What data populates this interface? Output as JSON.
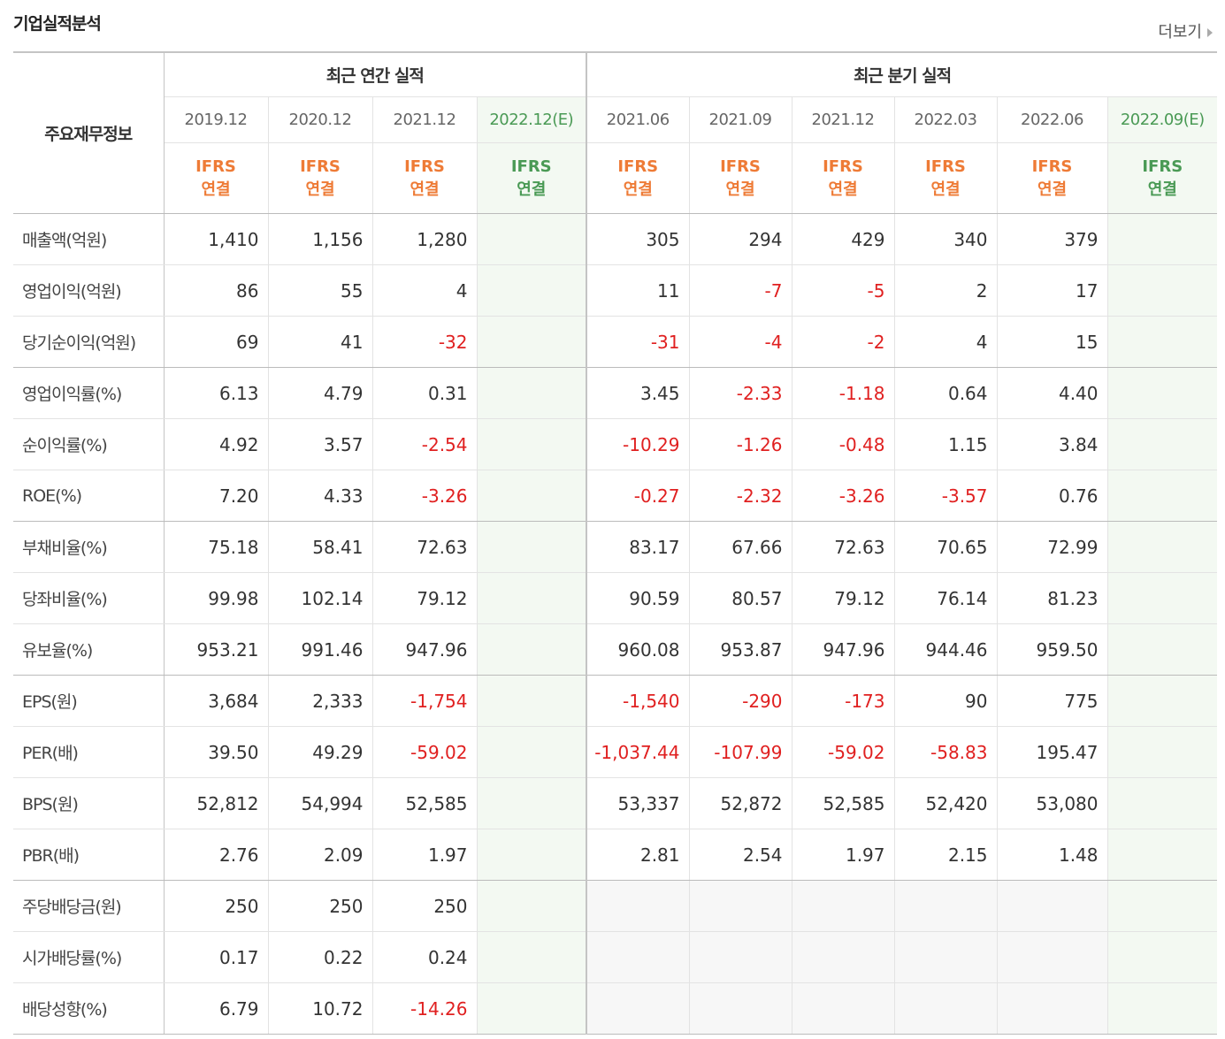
{
  "title": "기업실적분석",
  "more_link": "더보기",
  "table": {
    "row_header": "주요재무정보",
    "groups": [
      {
        "label": "최근 연간 실적",
        "periods": [
          {
            "date": "2019.12",
            "standard": "IFRS",
            "consolidation": "연결"
          },
          {
            "date": "2020.12",
            "standard": "IFRS",
            "consolidation": "연결"
          },
          {
            "date": "2021.12",
            "standard": "IFRS",
            "consolidation": "연결"
          },
          {
            "date": "2022.12",
            "mark": "(E)",
            "standard": "IFRS",
            "consolidation": "연결"
          }
        ]
      },
      {
        "label": "최근 분기 실적",
        "periods": [
          {
            "date": "2021.06",
            "standard": "IFRS",
            "consolidation": "연결"
          },
          {
            "date": "2021.09",
            "standard": "IFRS",
            "consolidation": "연결"
          },
          {
            "date": "2021.12",
            "standard": "IFRS",
            "consolidation": "연결"
          },
          {
            "date": "2022.03",
            "standard": "IFRS",
            "consolidation": "연결"
          },
          {
            "date": "2022.06",
            "standard": "IFRS",
            "consolidation": "연결"
          },
          {
            "date": "2022.09",
            "mark": "(E)",
            "standard": "IFRS",
            "consolidation": "연결"
          }
        ]
      }
    ],
    "row_groups": [
      {
        "rows": [
          {
            "label": "매출액(억원)",
            "values": [
              "1,410",
              "1,156",
              "1,280",
              null,
              "305",
              "294",
              "429",
              "340",
              "379",
              null
            ]
          },
          {
            "label": "영업이익(억원)",
            "values": [
              "86",
              "55",
              "4",
              null,
              "11",
              "-7",
              "-5",
              "2",
              "17",
              null
            ]
          },
          {
            "label": "당기순이익(억원)",
            "values": [
              "69",
              "41",
              "-32",
              null,
              "-31",
              "-4",
              "-2",
              "4",
              "15",
              null
            ]
          }
        ]
      },
      {
        "rows": [
          {
            "label": "영업이익률(%)",
            "values": [
              "6.13",
              "4.79",
              "0.31",
              null,
              "3.45",
              "-2.33",
              "-1.18",
              "0.64",
              "4.40",
              null
            ]
          },
          {
            "label": "순이익률(%)",
            "values": [
              "4.92",
              "3.57",
              "-2.54",
              null,
              "-10.29",
              "-1.26",
              "-0.48",
              "1.15",
              "3.84",
              null
            ]
          },
          {
            "label": "ROE(%)",
            "values": [
              "7.20",
              "4.33",
              "-3.26",
              null,
              "-0.27",
              "-2.32",
              "-3.26",
              "-3.57",
              "0.76",
              null
            ]
          }
        ]
      },
      {
        "rows": [
          {
            "label": "부채비율(%)",
            "values": [
              "75.18",
              "58.41",
              "72.63",
              null,
              "83.17",
              "67.66",
              "72.63",
              "70.65",
              "72.99",
              null
            ]
          },
          {
            "label": "당좌비율(%)",
            "values": [
              "99.98",
              "102.14",
              "79.12",
              null,
              "90.59",
              "80.57",
              "79.12",
              "76.14",
              "81.23",
              null
            ]
          },
          {
            "label": "유보율(%)",
            "values": [
              "953.21",
              "991.46",
              "947.96",
              null,
              "960.08",
              "953.87",
              "947.96",
              "944.46",
              "959.50",
              null
            ]
          }
        ]
      },
      {
        "rows": [
          {
            "label": "EPS(원)",
            "values": [
              "3,684",
              "2,333",
              "-1,754",
              null,
              "-1,540",
              "-290",
              "-173",
              "90",
              "775",
              null
            ]
          },
          {
            "label": "PER(배)",
            "values": [
              "39.50",
              "49.29",
              "-59.02",
              null,
              "-1,037.44",
              "-107.99",
              "-59.02",
              "-58.83",
              "195.47",
              null
            ]
          },
          {
            "label": "BPS(원)",
            "values": [
              "52,812",
              "54,994",
              "52,585",
              null,
              "53,337",
              "52,872",
              "52,585",
              "52,420",
              "53,080",
              null
            ]
          },
          {
            "label": "PBR(배)",
            "values": [
              "2.76",
              "2.09",
              "1.97",
              null,
              "2.81",
              "2.54",
              "1.97",
              "2.15",
              "1.48",
              null
            ]
          }
        ]
      },
      {
        "rows": [
          {
            "label": "주당배당금(원)",
            "values": [
              "250",
              "250",
              "250",
              null,
              null,
              null,
              null,
              null,
              null,
              null
            ]
          },
          {
            "label": "시가배당률(%)",
            "values": [
              "0.17",
              "0.22",
              "0.24",
              null,
              null,
              null,
              null,
              null,
              null,
              null
            ]
          },
          {
            "label": "배당성향(%)",
            "values": [
              "6.79",
              "10.72",
              "-14.26",
              null,
              null,
              null,
              null,
              null,
              null,
              null
            ]
          }
        ]
      }
    ]
  }
}
